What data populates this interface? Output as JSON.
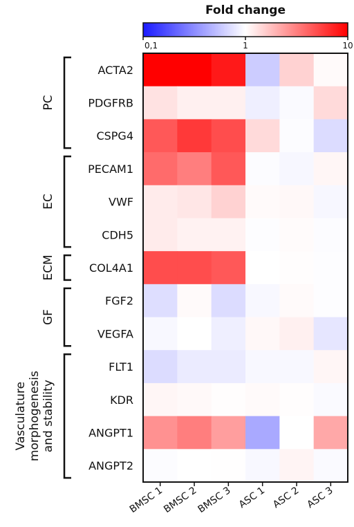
{
  "chart_data": {
    "type": "heatmap",
    "colorbar": {
      "title": "Fold change",
      "tick_labels": [
        "0,1",
        "1",
        "10"
      ],
      "tick_values": [
        0.1,
        1,
        10
      ],
      "scale": "log",
      "colors": {
        "low": "#1a1aff",
        "mid": "#ffffff",
        "high": "#ff0000"
      }
    },
    "columns": [
      "BMSC 1",
      "BMSC 2",
      "BMSC 3",
      "ASC 1",
      "ASC 2",
      "ASC 3"
    ],
    "rows": [
      "ACTA2",
      "PDGFRB",
      "CSPG4",
      "PECAM1",
      "VWF",
      "CDH5",
      "COL4A1",
      "FGF2",
      "VEGFA",
      "FLT1",
      "KDR",
      "ANGPT1",
      "ANGPT2"
    ],
    "groups": [
      {
        "label": "PC",
        "rows": [
          "ACTA2",
          "PDGFRB",
          "CSPG4"
        ]
      },
      {
        "label": "EC",
        "rows": [
          "PECAM1",
          "VWF",
          "CDH5"
        ]
      },
      {
        "label": "ECM",
        "rows": [
          "COL4A1"
        ]
      },
      {
        "label": "GF",
        "rows": [
          "FGF2",
          "VEGFA"
        ]
      },
      {
        "label_lines": [
          "Vasculature",
          "morphogenesis",
          "and stability"
        ],
        "rows": [
          "FLT1",
          "KDR",
          "ANGPT1",
          "ANGPT2"
        ]
      }
    ],
    "values": [
      [
        10,
        10,
        8,
        0.6,
        1.5,
        1.05
      ],
      [
        1.3,
        1.15,
        1.15,
        0.85,
        0.95,
        1.4
      ],
      [
        4.5,
        6,
        5,
        1.4,
        0.97,
        0.7
      ],
      [
        3.8,
        3.2,
        4.5,
        0.97,
        0.92,
        1.08
      ],
      [
        1.2,
        1.25,
        1.5,
        1.05,
        1.07,
        0.92
      ],
      [
        1.2,
        1.12,
        1.12,
        0.98,
        1.04,
        0.97
      ],
      [
        5,
        5,
        4.5,
        1.0,
        1.02,
        0.98
      ],
      [
        0.72,
        1.05,
        0.7,
        0.93,
        1.05,
        0.98
      ],
      [
        0.93,
        1.0,
        0.85,
        1.07,
        1.15,
        0.78
      ],
      [
        0.7,
        0.82,
        0.82,
        0.93,
        0.93,
        1.08
      ],
      [
        1.08,
        1.06,
        1.02,
        1.05,
        1.02,
        0.95
      ],
      [
        2.7,
        3.2,
        2.4,
        0.42,
        1.0,
        2.2
      ],
      [
        0.97,
        1.0,
        1.01,
        0.93,
        1.1,
        0.95
      ]
    ]
  }
}
